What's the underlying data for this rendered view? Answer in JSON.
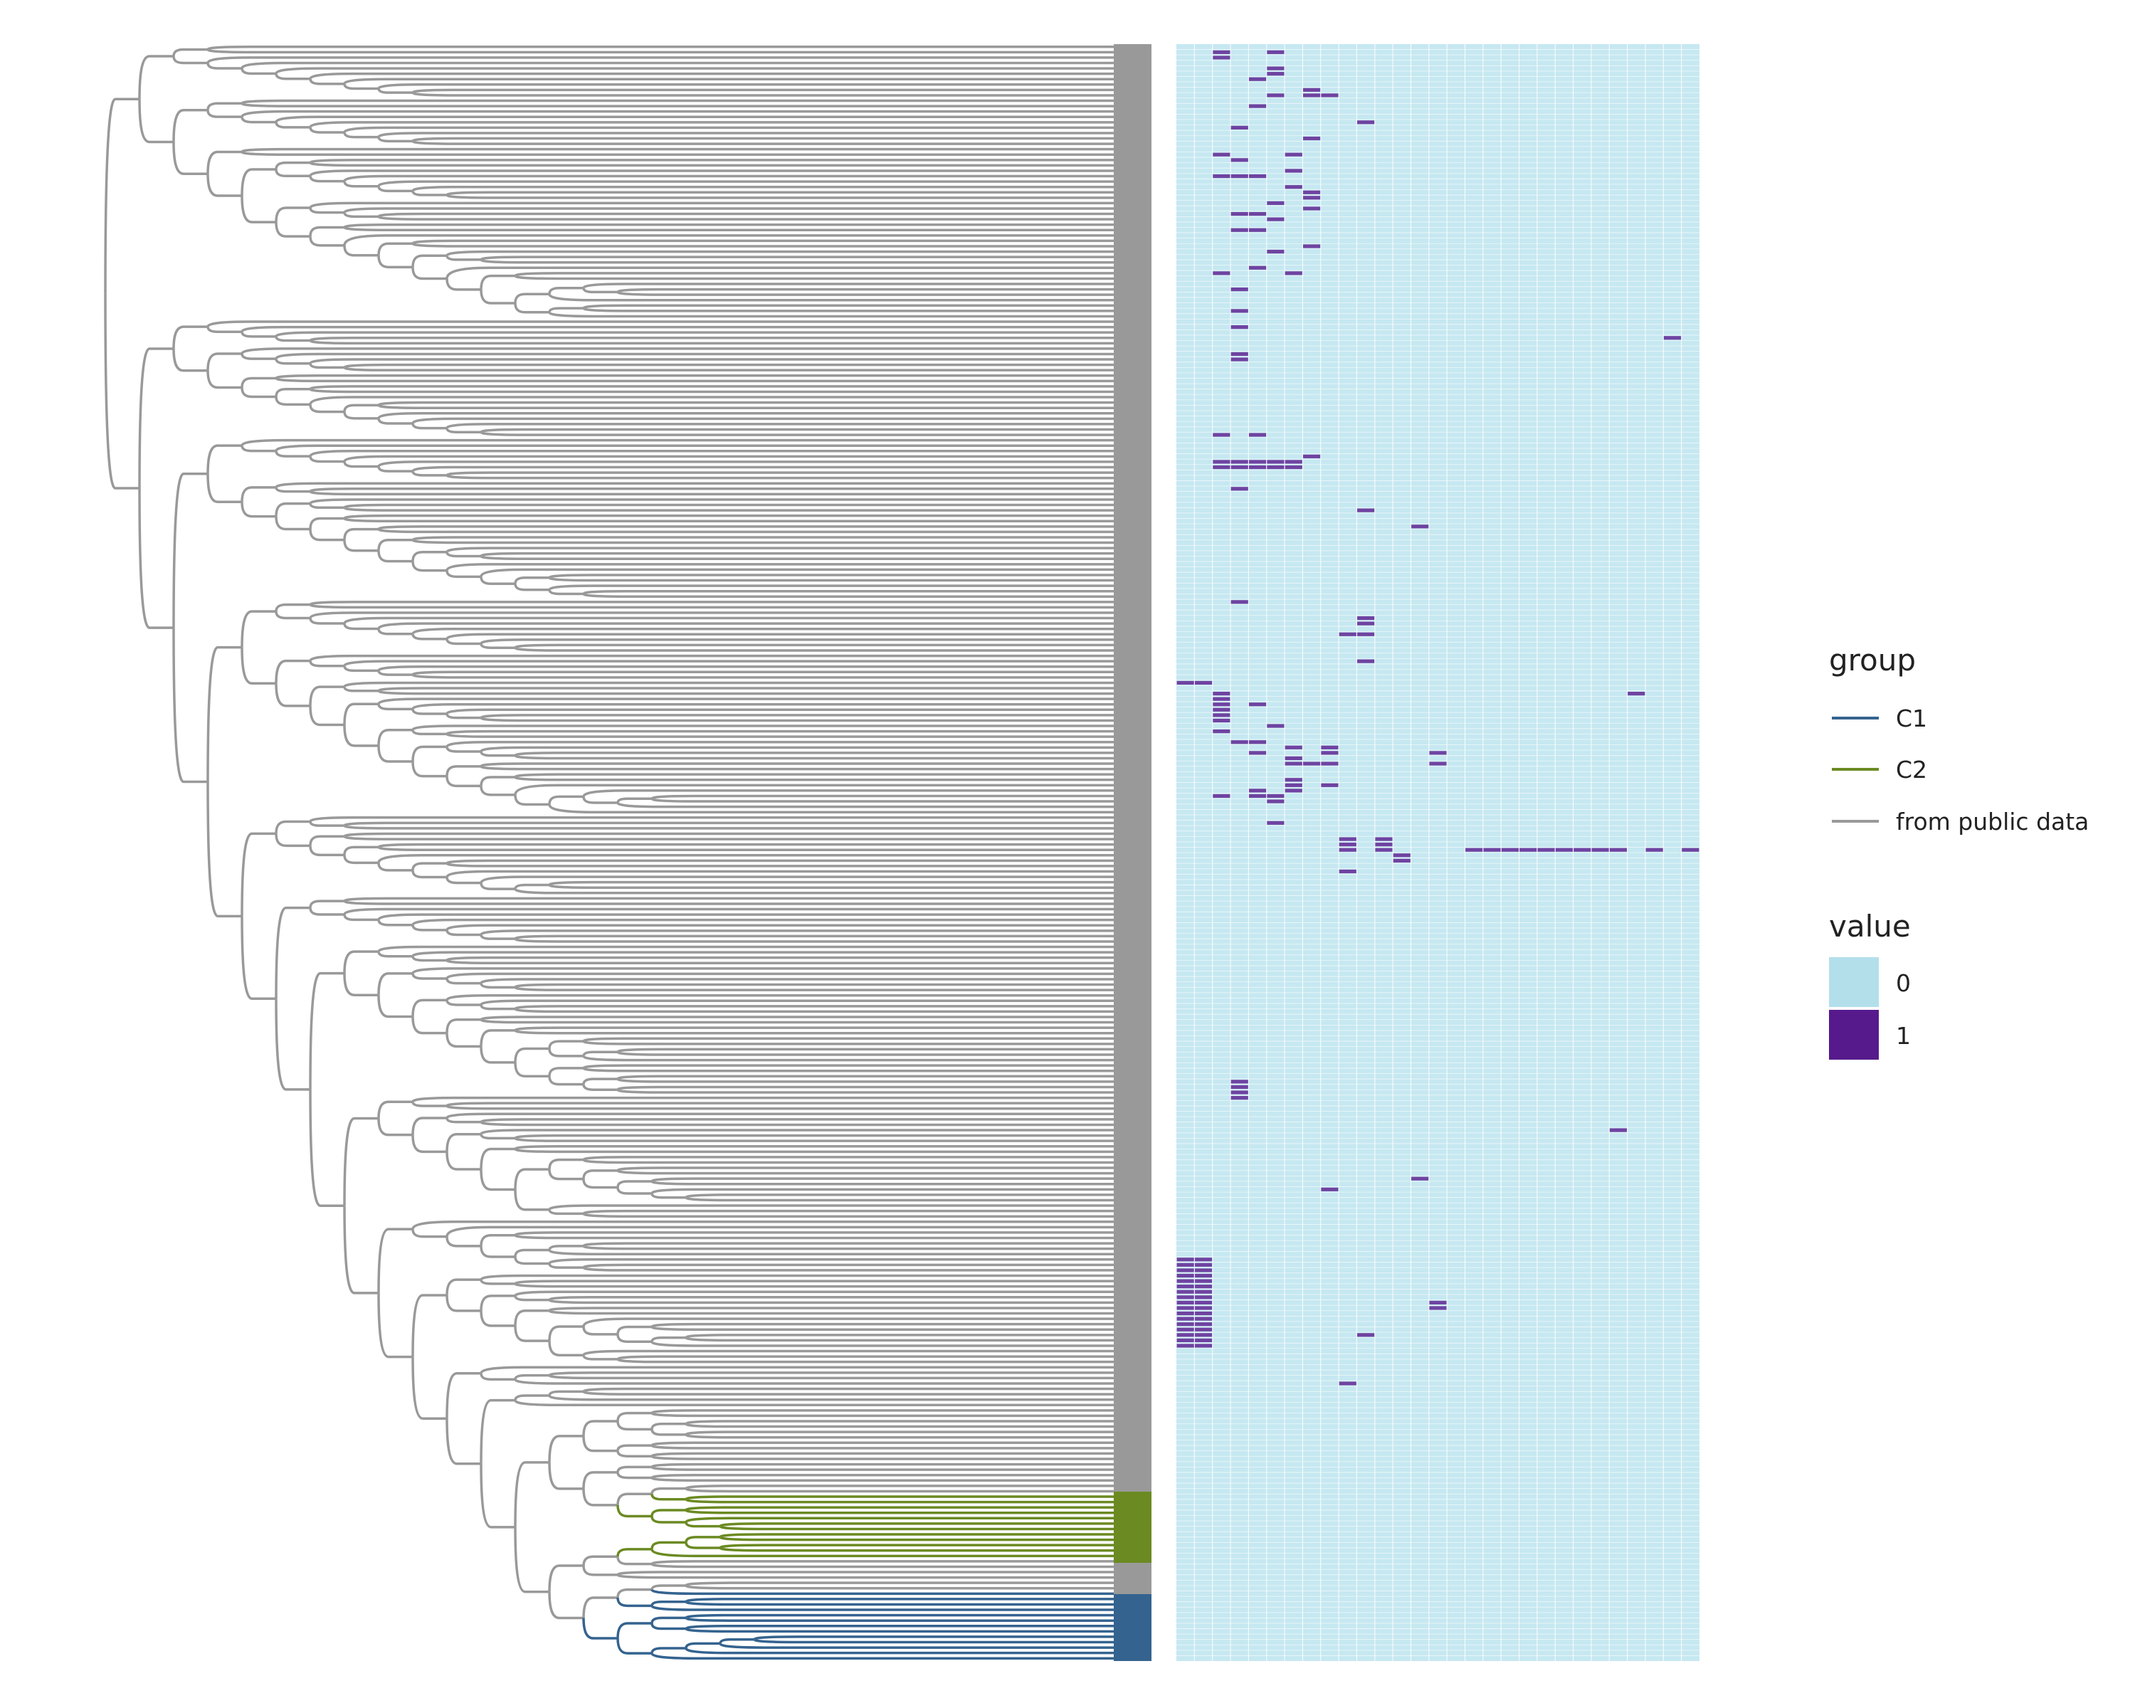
{
  "chart_data": {
    "type": "heatmap",
    "title": "",
    "xlabel": "",
    "ylabel": "",
    "n_rows": 300,
    "n_cols": 29,
    "colors": {
      "value_0": "#c6e8f1",
      "value_1": "#5b1f8f",
      "group_C1": "#34638f",
      "group_C2": "#6b8a22",
      "group_public": "#999999"
    },
    "legend": {
      "position": "right",
      "group": {
        "title": "group",
        "entries": [
          {
            "label": "C1",
            "color": "#34638f"
          },
          {
            "label": "C2",
            "color": "#6b8a22"
          },
          {
            "label": "from public data",
            "color": "#999999"
          }
        ]
      },
      "value": {
        "title": "value",
        "entries": [
          {
            "label": "0",
            "color": "#b3dfeb"
          },
          {
            "label": "1",
            "color": "#561a8c"
          }
        ]
      }
    },
    "tree_groups": [
      {
        "group": "C1",
        "rows": [
          287,
          299
        ]
      },
      {
        "group": "C2",
        "rows": [
          269,
          280
        ]
      }
    ],
    "cells_with_value_1": [
      [
        1,
        2
      ],
      [
        2,
        2
      ],
      [
        1,
        5
      ],
      [
        4,
        5
      ],
      [
        5,
        5
      ],
      [
        6,
        4
      ],
      [
        8,
        7
      ],
      [
        9,
        7
      ],
      [
        9,
        8
      ],
      [
        9,
        5
      ],
      [
        11,
        4
      ],
      [
        14,
        10
      ],
      [
        15,
        3
      ],
      [
        17,
        7
      ],
      [
        20,
        2
      ],
      [
        20,
        6
      ],
      [
        21,
        3
      ],
      [
        23,
        6
      ],
      [
        24,
        2
      ],
      [
        24,
        3
      ],
      [
        24,
        4
      ],
      [
        26,
        6
      ],
      [
        27,
        7
      ],
      [
        28,
        7
      ],
      [
        29,
        5
      ],
      [
        30,
        7
      ],
      [
        31,
        3
      ],
      [
        31,
        4
      ],
      [
        32,
        5
      ],
      [
        34,
        3
      ],
      [
        34,
        4
      ],
      [
        37,
        7
      ],
      [
        38,
        5
      ],
      [
        41,
        4
      ],
      [
        42,
        2
      ],
      [
        42,
        6
      ],
      [
        45,
        3
      ],
      [
        49,
        3
      ],
      [
        52,
        3
      ],
      [
        54,
        27
      ],
      [
        57,
        3
      ],
      [
        58,
        3
      ],
      [
        72,
        2
      ],
      [
        72,
        4
      ],
      [
        76,
        7
      ],
      [
        77,
        2
      ],
      [
        77,
        3
      ],
      [
        77,
        4
      ],
      [
        77,
        5
      ],
      [
        77,
        6
      ],
      [
        78,
        2
      ],
      [
        78,
        3
      ],
      [
        78,
        4
      ],
      [
        78,
        5
      ],
      [
        78,
        6
      ],
      [
        82,
        3
      ],
      [
        86,
        10
      ],
      [
        89,
        13
      ],
      [
        103,
        3
      ],
      [
        106,
        10
      ],
      [
        107,
        10
      ],
      [
        109,
        9
      ],
      [
        109,
        10
      ],
      [
        114,
        10
      ],
      [
        118,
        0
      ],
      [
        118,
        1
      ],
      [
        120,
        2
      ],
      [
        120,
        25
      ],
      [
        121,
        2
      ],
      [
        122,
        4
      ],
      [
        122,
        2
      ],
      [
        123,
        2
      ],
      [
        124,
        2
      ],
      [
        125,
        2
      ],
      [
        126,
        5
      ],
      [
        127,
        2
      ],
      [
        129,
        3
      ],
      [
        129,
        4
      ],
      [
        130,
        6
      ],
      [
        130,
        8
      ],
      [
        131,
        8
      ],
      [
        131,
        4
      ],
      [
        131,
        14
      ],
      [
        132,
        6
      ],
      [
        133,
        6
      ],
      [
        133,
        7
      ],
      [
        133,
        8
      ],
      [
        133,
        14
      ],
      [
        136,
        6
      ],
      [
        137,
        6
      ],
      [
        137,
        8
      ],
      [
        138,
        4
      ],
      [
        138,
        6
      ],
      [
        139,
        2
      ],
      [
        139,
        4
      ],
      [
        139,
        5
      ],
      [
        140,
        5
      ],
      [
        144,
        5
      ],
      [
        147,
        9
      ],
      [
        147,
        11
      ],
      [
        148,
        9
      ],
      [
        148,
        11
      ],
      [
        149,
        9
      ],
      [
        149,
        11
      ],
      [
        149,
        16
      ],
      [
        149,
        17
      ],
      [
        149,
        18
      ],
      [
        149,
        19
      ],
      [
        149,
        20
      ],
      [
        149,
        21
      ],
      [
        149,
        22
      ],
      [
        149,
        23
      ],
      [
        149,
        24
      ],
      [
        149,
        26
      ],
      [
        149,
        28
      ],
      [
        150,
        12
      ],
      [
        151,
        12
      ],
      [
        153,
        9
      ],
      [
        192,
        3
      ],
      [
        193,
        3
      ],
      [
        194,
        3
      ],
      [
        195,
        3
      ],
      [
        201,
        24
      ],
      [
        210,
        13
      ],
      [
        212,
        8
      ],
      [
        233,
        14
      ],
      [
        234,
        14
      ],
      [
        239,
        10
      ],
      [
        248,
        9
      ],
      [
        225,
        0
      ],
      [
        225,
        1
      ],
      [
        226,
        0
      ],
      [
        226,
        1
      ],
      [
        227,
        0
      ],
      [
        227,
        1
      ],
      [
        228,
        0
      ],
      [
        228,
        1
      ],
      [
        229,
        0
      ],
      [
        229,
        1
      ],
      [
        230,
        0
      ],
      [
        230,
        1
      ],
      [
        231,
        0
      ],
      [
        231,
        1
      ],
      [
        232,
        0
      ],
      [
        232,
        1
      ],
      [
        233,
        0
      ],
      [
        233,
        1
      ],
      [
        234,
        0
      ],
      [
        234,
        1
      ],
      [
        235,
        0
      ],
      [
        235,
        1
      ],
      [
        236,
        0
      ],
      [
        236,
        1
      ],
      [
        237,
        0
      ],
      [
        237,
        1
      ],
      [
        238,
        0
      ],
      [
        238,
        1
      ],
      [
        239,
        0
      ],
      [
        239,
        1
      ],
      [
        240,
        0
      ],
      [
        240,
        1
      ],
      [
        241,
        0
      ],
      [
        241,
        1
      ]
    ]
  }
}
